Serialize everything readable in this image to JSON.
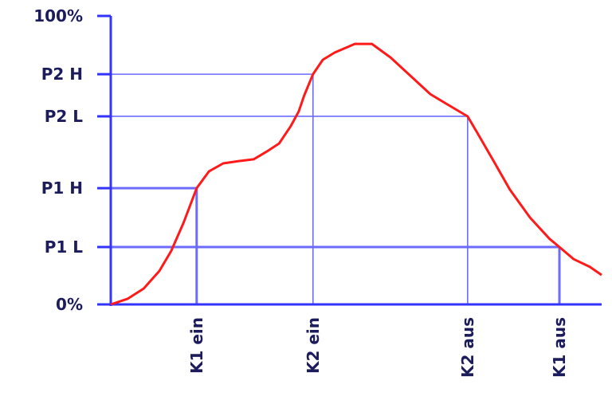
{
  "chart_data": {
    "type": "line",
    "title": "",
    "xlabel": "",
    "ylabel": "",
    "ylim": [
      0,
      100
    ],
    "xlim": [
      0,
      100
    ],
    "grid": false,
    "y_ticks": [
      {
        "label": "100%",
        "value": 100
      },
      {
        "label": "P2 H",
        "value": 79.8
      },
      {
        "label": "P2 L",
        "value": 65.2
      },
      {
        "label": "P1 H",
        "value": 40.3
      },
      {
        "label": "P1 L",
        "value": 19.9
      },
      {
        "label": "0%",
        "value": 0
      }
    ],
    "x_markers": [
      {
        "label": "K1 ein",
        "x": 17.5,
        "level": 40.3
      },
      {
        "label": "K2 ein",
        "x": 41.2,
        "level": 79.8
      },
      {
        "label": "K2 aus",
        "x": 72.7,
        "level": 65.2
      },
      {
        "label": "K1 aus",
        "x": 91.4,
        "level": 19.9
      }
    ],
    "series": [
      {
        "x": [
          0,
          3.4,
          6.7,
          9.9,
          12.3,
          14.8,
          17.5,
          20.0,
          22.9,
          26.1,
          29.1,
          31.8,
          34.3,
          36.7,
          38.3,
          39.4,
          41.2,
          43.2,
          45.6,
          49.7,
          53.2,
          57.0,
          61.0,
          65.1,
          68.3,
          72.7,
          74.8,
          78.1,
          81.3,
          85.4,
          89.4,
          91.4,
          94.3,
          97.6,
          100
        ],
        "y": [
          0,
          1.9,
          5.5,
          11.6,
          18.5,
          28.2,
          40.3,
          46.1,
          48.9,
          49.7,
          50.3,
          53.0,
          55.8,
          61.9,
          66.9,
          72.4,
          79.8,
          84.8,
          87.3,
          90.3,
          90.3,
          85.6,
          79.3,
          72.9,
          69.6,
          65.2,
          59.1,
          49.4,
          39.8,
          30.1,
          22.7,
          19.9,
          15.7,
          13.0,
          10.2
        ]
      }
    ],
    "colors": {
      "curve": "#ff1a1a",
      "axis": "#3333ff",
      "guide": "#6b6bff",
      "label": "#1c1c5c"
    }
  }
}
